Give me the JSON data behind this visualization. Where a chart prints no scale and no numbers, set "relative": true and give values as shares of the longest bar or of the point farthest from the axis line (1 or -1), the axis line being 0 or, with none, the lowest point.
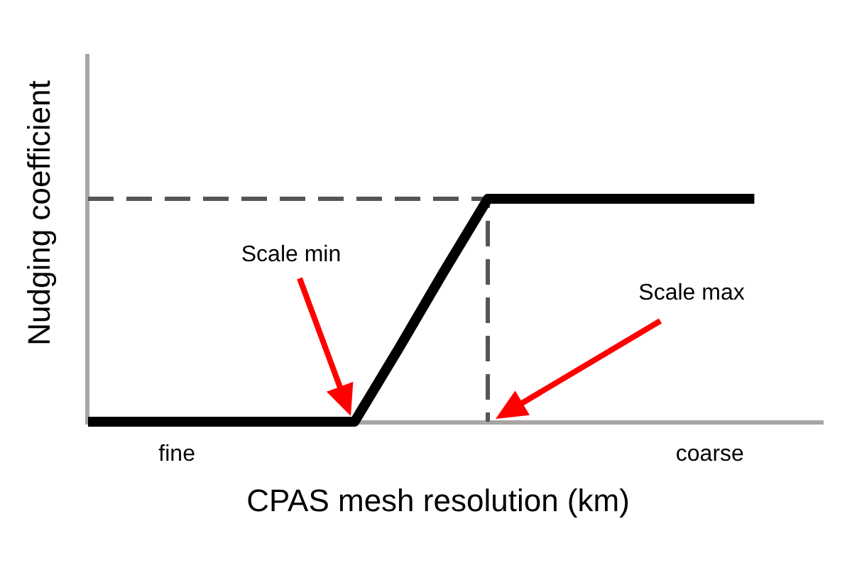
{
  "chart_data": {
    "type": "line",
    "relative": true,
    "xlabel": "CPAS mesh resolution (km)",
    "ylabel": "Nudging coefficient",
    "categories": [
      null,
      null,
      "fine",
      null,
      null,
      null,
      null,
      null,
      null,
      null,
      null,
      null,
      null,
      null,
      "coarse",
      null
    ],
    "series": [
      {
        "color": "#000000",
        "values": [
          0,
          0,
          0,
          0,
          0,
          0,
          0,
          0.33,
          0.67,
          1,
          1,
          1,
          1,
          1,
          1,
          1
        ]
      },
      {
        "type": "step",
        "color": "#555555",
        "line_style": "dashed",
        "values": [
          1,
          1,
          1,
          1,
          1,
          1,
          1,
          1,
          1,
          0,
          null,
          null,
          null,
          null,
          null,
          null
        ]
      }
    ],
    "annotations": [
      "Scale min",
      "Scale max"
    ]
  }
}
